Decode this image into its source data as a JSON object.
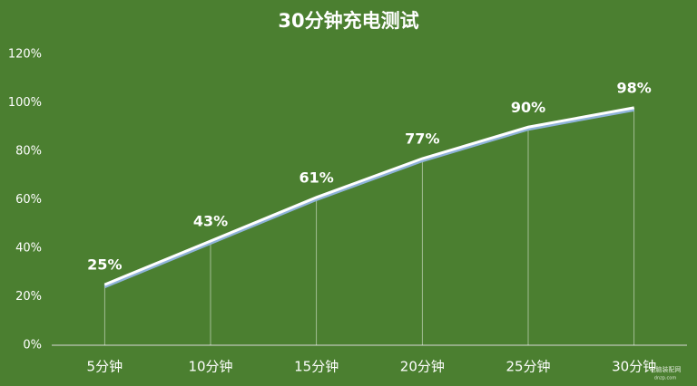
{
  "chart_data": {
    "type": "line",
    "title": "30分钟充电测试",
    "categories": [
      "5分钟",
      "10分钟",
      "15分钟",
      "20分钟",
      "25分钟",
      "30分钟"
    ],
    "values": [
      25,
      43,
      61,
      77,
      90,
      98
    ],
    "value_labels": [
      "25%",
      "43%",
      "61%",
      "77%",
      "90%",
      "98%"
    ],
    "color": "#ffffff",
    "ylim": [
      0,
      120
    ],
    "yticks": [
      {
        "value": 0,
        "label": "0%"
      },
      {
        "value": 20,
        "label": "20%"
      },
      {
        "value": 40,
        "label": "40%"
      },
      {
        "value": 60,
        "label": "60%"
      },
      {
        "value": 80,
        "label": "80%"
      },
      {
        "value": 100,
        "label": "100%"
      },
      {
        "value": 120,
        "label": "120%"
      }
    ],
    "grid": false,
    "watermark": [
      "电脑装配网",
      "dnzp.com"
    ]
  }
}
